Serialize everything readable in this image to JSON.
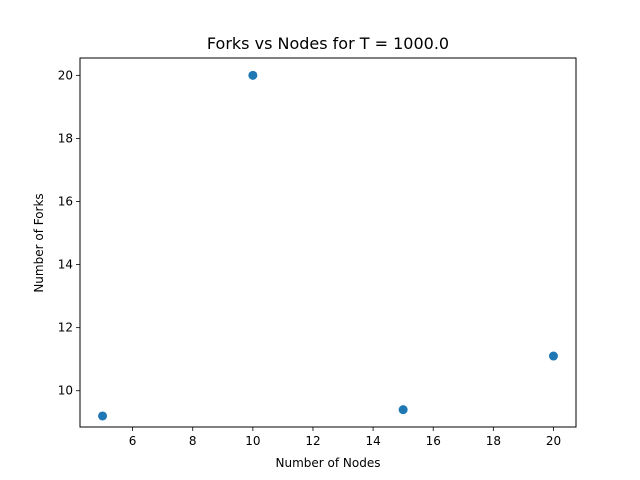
{
  "chart_data": {
    "type": "scatter",
    "title": "Forks vs Nodes for T = 1000.0",
    "xlabel": "Number of Nodes",
    "ylabel": "Number of Forks",
    "xlim": [
      4.25,
      20.75
    ],
    "ylim": [
      8.85,
      20.55
    ],
    "xticks": [
      6,
      8,
      10,
      12,
      14,
      16,
      18,
      20
    ],
    "yticks": [
      10,
      12,
      14,
      16,
      18,
      20
    ],
    "grid": false,
    "legend": false,
    "series": [
      {
        "color": "#1f77b4",
        "points": [
          {
            "x": 5,
            "y": 9.2
          },
          {
            "x": 10,
            "y": 20
          },
          {
            "x": 15,
            "y": 9.4
          },
          {
            "x": 20,
            "y": 11.1
          }
        ]
      }
    ]
  }
}
